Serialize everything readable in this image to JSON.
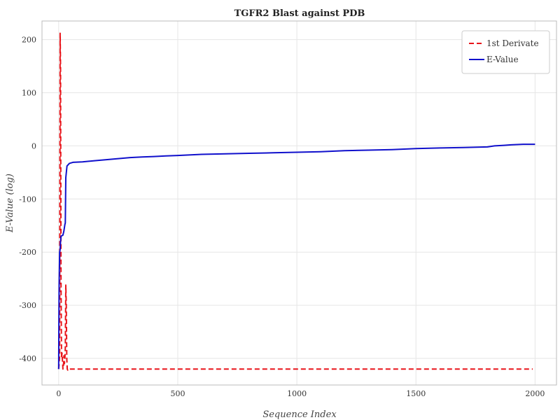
{
  "chart_data": {
    "type": "line",
    "title": "TGFR2 Blast against PDB",
    "xlabel": "Sequence Index",
    "ylabel": "E-Value (log)",
    "xlim": [
      -70,
      2090
    ],
    "ylim": [
      -450,
      235
    ],
    "xticks": [
      0,
      500,
      1000,
      1500,
      2000
    ],
    "yticks": [
      -400,
      -300,
      -200,
      -100,
      0,
      100,
      200
    ],
    "grid": true,
    "legend_position": "top-right",
    "series": [
      {
        "name": "1st Derivate",
        "color": "#e8141a",
        "style": "dashed",
        "points": [
          [
            0,
            -420
          ],
          [
            2,
            -410
          ],
          [
            4,
            -395
          ],
          [
            6,
            212
          ],
          [
            8,
            150
          ],
          [
            10,
            -260
          ],
          [
            12,
            -400
          ],
          [
            14,
            -390
          ],
          [
            16,
            -405
          ],
          [
            18,
            -420
          ],
          [
            20,
            -415
          ],
          [
            22,
            -395
          ],
          [
            24,
            -410
          ],
          [
            26,
            -400
          ],
          [
            28,
            -380
          ],
          [
            30,
            -262
          ],
          [
            32,
            -300
          ],
          [
            34,
            -400
          ],
          [
            36,
            -420
          ],
          [
            38,
            -422
          ],
          [
            40,
            -420
          ],
          [
            100,
            -420
          ],
          [
            300,
            -420
          ],
          [
            600,
            -420
          ],
          [
            1000,
            -420
          ],
          [
            1500,
            -420
          ],
          [
            1800,
            -420
          ],
          [
            1990,
            -420
          ]
        ]
      },
      {
        "name": "E-Value",
        "color": "#1010cc",
        "style": "solid",
        "points": [
          [
            0,
            -420
          ],
          [
            1,
            -320
          ],
          [
            2,
            -260
          ],
          [
            4,
            -200
          ],
          [
            6,
            -195
          ],
          [
            8,
            -180
          ],
          [
            10,
            -170
          ],
          [
            18,
            -168
          ],
          [
            22,
            -160
          ],
          [
            26,
            -148
          ],
          [
            28,
            -145
          ],
          [
            30,
            -60
          ],
          [
            35,
            -38
          ],
          [
            45,
            -33
          ],
          [
            60,
            -31
          ],
          [
            100,
            -30
          ],
          [
            150,
            -28
          ],
          [
            200,
            -26
          ],
          [
            250,
            -24
          ],
          [
            300,
            -22
          ],
          [
            350,
            -21
          ],
          [
            400,
            -20
          ],
          [
            450,
            -19
          ],
          [
            500,
            -18
          ],
          [
            600,
            -16
          ],
          [
            700,
            -15
          ],
          [
            800,
            -14
          ],
          [
            900,
            -13
          ],
          [
            1000,
            -12
          ],
          [
            1100,
            -11
          ],
          [
            1200,
            -9
          ],
          [
            1300,
            -8
          ],
          [
            1400,
            -7
          ],
          [
            1500,
            -5
          ],
          [
            1600,
            -4
          ],
          [
            1700,
            -3
          ],
          [
            1800,
            -2
          ],
          [
            1830,
            0
          ],
          [
            1870,
            1
          ],
          [
            1900,
            2
          ],
          [
            1950,
            3
          ],
          [
            2000,
            3
          ]
        ]
      }
    ]
  }
}
